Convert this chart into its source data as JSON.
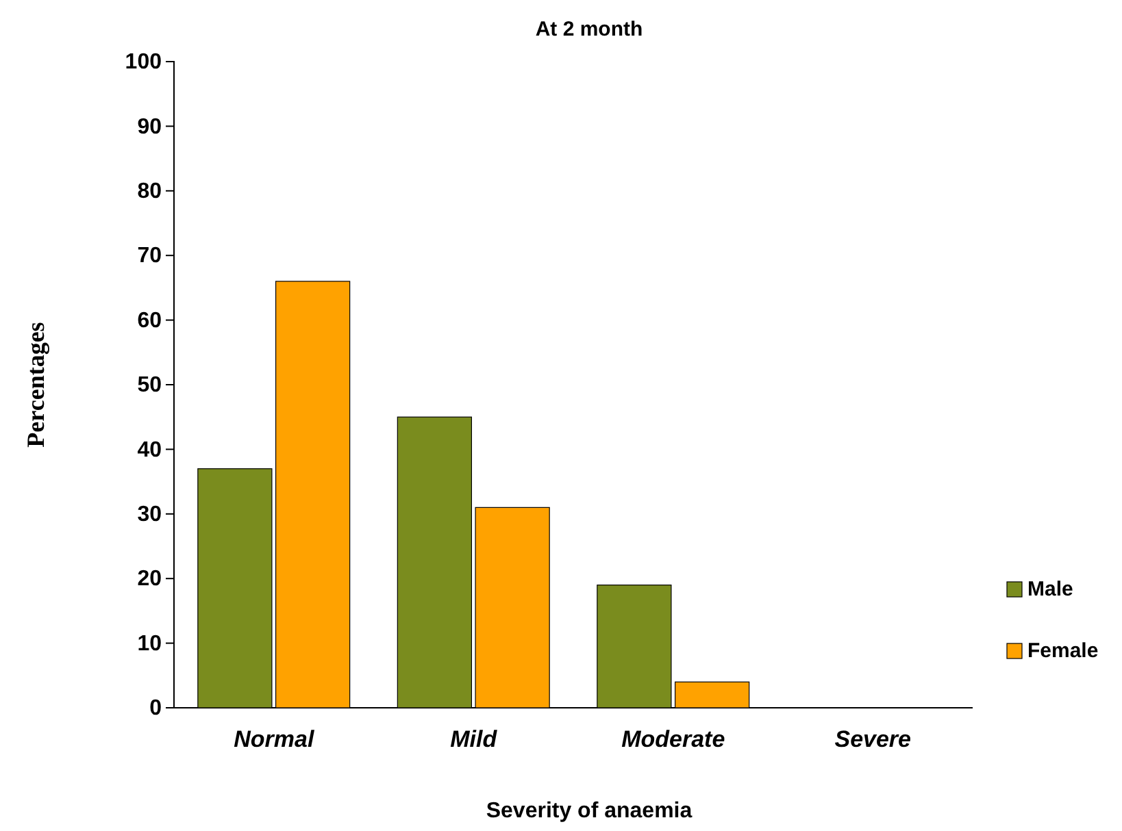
{
  "chart_data": {
    "type": "bar",
    "title": "At 2 month",
    "xlabel": "Severity of anaemia",
    "ylabel": "Percentages",
    "categories": [
      "Normal",
      "Mild",
      "Moderate",
      "Severe"
    ],
    "series": [
      {
        "name": "Male",
        "color": "#7a8c1e",
        "values": [
          37,
          45,
          19,
          0
        ]
      },
      {
        "name": "Female",
        "color": "#ffa200",
        "values": [
          66,
          31,
          4,
          0
        ]
      }
    ],
    "ylim": [
      0,
      100
    ],
    "yticks": [
      0,
      10,
      20,
      30,
      40,
      50,
      60,
      70,
      80,
      90,
      100
    ],
    "legend": "right"
  }
}
